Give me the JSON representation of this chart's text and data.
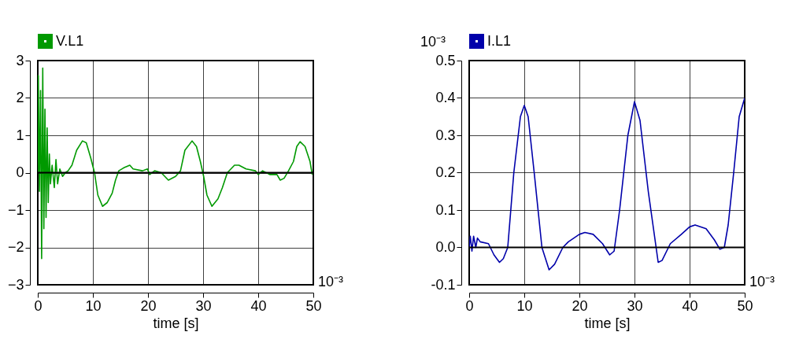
{
  "chart_data": [
    {
      "type": "line",
      "xlabel": "time [s]",
      "xlim": [
        0,
        50
      ],
      "xticks": [
        0,
        10,
        20,
        30,
        40,
        50
      ],
      "ylim": [
        -3,
        3
      ],
      "yticks": [
        -3,
        -2,
        -1,
        0,
        1,
        2,
        3
      ],
      "grid": true,
      "legend": "top left",
      "annotations": [
        "10⁻³"
      ],
      "ref_lines": [
        {
          "axis": "y",
          "value": 0,
          "color": "#000000"
        }
      ],
      "series": [
        {
          "name": "V.L1",
          "color": "#009900",
          "x": [
            0,
            0.1,
            0.3,
            0.5,
            0.7,
            0.9,
            1.1,
            1.3,
            1.5,
            1.7,
            1.9,
            2.1,
            2.3,
            2.6,
            3,
            3.3,
            3.6,
            4,
            4.5,
            5,
            5.5,
            6.2,
            7.05,
            8.1,
            8.8,
            9.6,
            10.3,
            10.9,
            11.75,
            12.6,
            13.5,
            14.1,
            14.7,
            15.6,
            16.7,
            17.3,
            19,
            19.9,
            20.3,
            21.2,
            22.4,
            23.7,
            25,
            25.9,
            26.7,
            28,
            28.8,
            29.5,
            30.1,
            30.7,
            31.6,
            32.7,
            33.5,
            34.4,
            35.7,
            36.5,
            37.8,
            39.5,
            40,
            40.8,
            42.1,
            43.4,
            44,
            44.7,
            45.5,
            46.4,
            47,
            47.6,
            48.5,
            49.4,
            49.8
          ],
          "values": [
            0,
            2.6,
            -0.5,
            2.2,
            -2.3,
            2.8,
            -1.5,
            1.7,
            -1.2,
            1.2,
            -0.8,
            0.5,
            -0.3,
            0.2,
            -0.4,
            0.35,
            -0.3,
            0.1,
            -0.1,
            0,
            0.05,
            0.2,
            0.6,
            0.85,
            0.8,
            0.4,
            0,
            -0.6,
            -0.9,
            -0.8,
            -0.55,
            -0.2,
            0.05,
            0.13,
            0.2,
            0.1,
            0.05,
            0.1,
            -0.05,
            0.05,
            0,
            -0.2,
            -0.1,
            0.05,
            0.6,
            0.85,
            0.7,
            0.3,
            -0.1,
            -0.6,
            -0.9,
            -0.7,
            -0.4,
            0,
            0.2,
            0.2,
            0.1,
            0.05,
            -0.05,
            0.05,
            -0.05,
            -0.05,
            -0.2,
            -0.15,
            0.05,
            0.3,
            0.7,
            0.83,
            0.7,
            0.3,
            -0.05
          ]
        }
      ]
    },
    {
      "type": "line",
      "xlabel": "time [s]",
      "xlim": [
        0,
        50
      ],
      "xticks": [
        0,
        10,
        20,
        30,
        40,
        50
      ],
      "ylim": [
        -0.1,
        0.5
      ],
      "yticks": [
        {
          "value": -0.1,
          "label": "-0.1"
        },
        {
          "value": 0,
          "label": "0.0"
        },
        0.1,
        0.2,
        0.3,
        0.4,
        0.5
      ],
      "grid": true,
      "legend": "top left",
      "annotations": [
        "10⁻³",
        "10⁻³"
      ],
      "ref_lines": [
        {
          "axis": "y",
          "value": 0,
          "color": "#000000"
        }
      ],
      "series": [
        {
          "name": "I.L1",
          "color": "#0000aa",
          "x": [
            0,
            0.2,
            0.5,
            0.8,
            1.2,
            1.5,
            2,
            3.5,
            4.5,
            5.5,
            6.2,
            7,
            8.1,
            9.3,
            10,
            10.7,
            11.8,
            13.2,
            14.5,
            15.5,
            17,
            18,
            20,
            21,
            22.5,
            24.2,
            25.5,
            26.3,
            27.3,
            28.8,
            30,
            31,
            32.5,
            34.3,
            35,
            36.5,
            38.5,
            40,
            41,
            43,
            44.5,
            45.5,
            46.3,
            47,
            48,
            49,
            50
          ],
          "values": [
            0,
            0.03,
            -0.01,
            0.03,
            0,
            0.025,
            0.015,
            0.01,
            -0.02,
            -0.04,
            -0.03,
            0,
            0.2,
            0.35,
            0.38,
            0.35,
            0.2,
            0,
            -0.06,
            -0.045,
            0,
            0.015,
            0.035,
            0.04,
            0.035,
            0.01,
            -0.02,
            -0.01,
            0.1,
            0.3,
            0.39,
            0.34,
            0.15,
            -0.04,
            -0.035,
            0.01,
            0.035,
            0.055,
            0.06,
            0.05,
            0.02,
            -0.005,
            0,
            0.06,
            0.2,
            0.35,
            0.4
          ]
        }
      ]
    }
  ]
}
